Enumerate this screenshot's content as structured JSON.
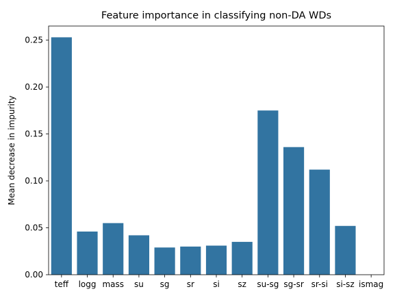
{
  "chart_data": {
    "type": "bar",
    "title": "Feature importance in classifying non-DA WDs",
    "xlabel": "",
    "ylabel": "Mean decrease in impurity",
    "categories": [
      "teff",
      "logg",
      "mass",
      "su",
      "sg",
      "sr",
      "si",
      "sz",
      "su-sg",
      "sg-sr",
      "sr-si",
      "si-sz",
      "ismag"
    ],
    "values": [
      0.253,
      0.046,
      0.055,
      0.042,
      0.029,
      0.03,
      0.031,
      0.035,
      0.175,
      0.136,
      0.112,
      0.052,
      0.0
    ],
    "ylim": [
      0,
      0.265
    ],
    "yticks": [
      0.0,
      0.05,
      0.1,
      0.15,
      0.2,
      0.25
    ],
    "ytick_labels": [
      "0.00",
      "0.05",
      "0.10",
      "0.15",
      "0.20",
      "0.25"
    ],
    "bar_color": "#3274a1",
    "grid": false,
    "legend": "none"
  }
}
